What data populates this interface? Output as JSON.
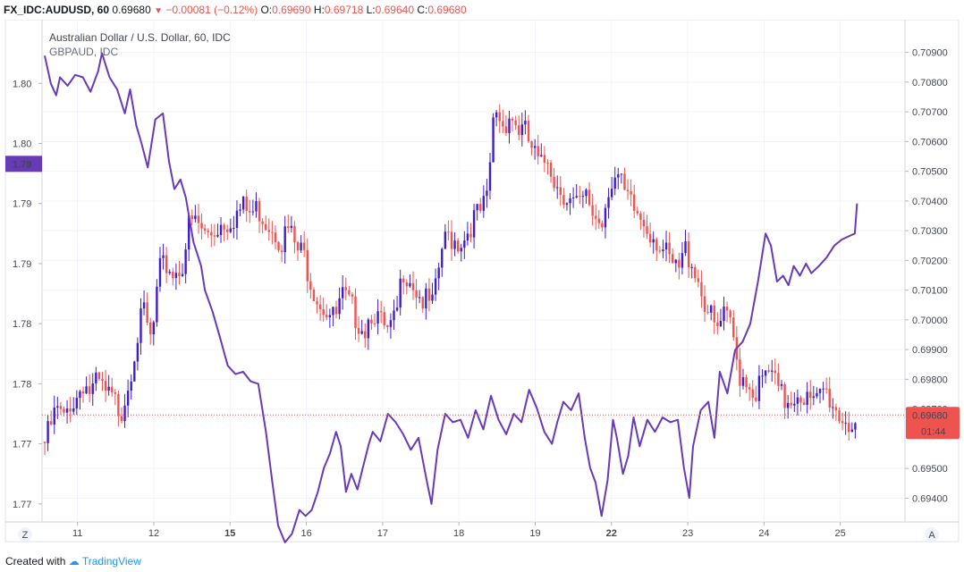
{
  "header": {
    "symbol": "FX_IDC:AUDUSD, 60",
    "last": "0.69680",
    "change": "−0.00081 (−0.12%)",
    "o_label": "O:",
    "o_val": "0.69690",
    "h_label": "H:",
    "h_val": "0.69718",
    "l_label": "L:",
    "l_val": "0.69640",
    "c_label": "C:",
    "c_val": "0.69680"
  },
  "legend": {
    "main_series": "Australian Dollar / U.S. Dollar, 60, IDC",
    "compare_series": "GBPAUD, IDC"
  },
  "footer": {
    "created_with": "Created with",
    "brand": "TradingView",
    "left_scale_button": "Z",
    "right_scale_button": "A"
  },
  "colors": {
    "up_candle": "#3f1dcb",
    "down_candle": "#ef5350",
    "compare_line": "#673ab7",
    "grid": "#f0f3fa",
    "last_price": "#ef5350",
    "left_badge": "#673ab7"
  },
  "chart_data": {
    "type": "line",
    "title": "Australian Dollar / U.S. Dollar, 60, IDC",
    "x_ticks": [
      {
        "label": "11",
        "bold": false
      },
      {
        "label": "12",
        "bold": false
      },
      {
        "label": "15",
        "bold": true
      },
      {
        "label": "16",
        "bold": false
      },
      {
        "label": "17",
        "bold": false
      },
      {
        "label": "18",
        "bold": false
      },
      {
        "label": "19",
        "bold": false
      },
      {
        "label": "22",
        "bold": true
      },
      {
        "label": "23",
        "bold": false
      },
      {
        "label": "24",
        "bold": false
      },
      {
        "label": "25",
        "bold": false
      }
    ],
    "right_axis": {
      "ticks": [
        "0.70900",
        "0.70800",
        "0.70700",
        "0.70600",
        "0.70500",
        "0.70400",
        "0.70300",
        "0.70200",
        "0.70100",
        "0.70000",
        "0.69900",
        "0.69800",
        "0.69700",
        "0.69500",
        "0.69400"
      ],
      "ylim": [
        0.6932,
        0.7101
      ]
    },
    "left_axis": {
      "ticks": [
        "1.80",
        "1.80",
        "1.79",
        "1.79",
        "1.78",
        "1.78",
        "1.77",
        "1.77"
      ],
      "tick_values": [
        1.802,
        1.797,
        1.792,
        1.787,
        1.782,
        1.777,
        1.772,
        1.767
      ],
      "ylim": [
        1.7655,
        1.8073
      ]
    },
    "last_price_label": "0.69680",
    "last_price_value": 0.6968,
    "countdown_label": "01:44",
    "left_badge_label": "1.79",
    "left_badge_value": 1.7953,
    "series": [
      {
        "name": "Australian Dollar / U.S. Dollar, 60, IDC",
        "axis": "right",
        "style": "candles",
        "close_points": [
          [
            0.0,
            0.6961
          ],
          [
            0.06,
            0.6965
          ],
          [
            0.12,
            0.697
          ],
          [
            0.18,
            0.6972
          ],
          [
            0.25,
            0.6968
          ],
          [
            0.33,
            0.6975
          ],
          [
            0.4,
            0.6975
          ],
          [
            0.5,
            0.6982
          ],
          [
            0.6,
            0.6978
          ],
          [
            0.7,
            0.6981
          ],
          [
            0.8,
            0.6977
          ],
          [
            0.9,
            0.6975
          ],
          [
            1.0,
            0.6972
          ],
          [
            1.1,
            0.6982
          ],
          [
            1.2,
            0.6996
          ],
          [
            1.3,
            0.7005
          ],
          [
            1.4,
            0.6994
          ],
          [
            1.5,
            0.7018
          ],
          [
            1.6,
            0.7021
          ],
          [
            1.7,
            0.7018
          ],
          [
            1.8,
            0.7021
          ],
          [
            1.9,
            0.7035
          ],
          [
            2.0,
            0.7035
          ],
          [
            2.1,
            0.7031
          ],
          [
            2.2,
            0.7032
          ],
          [
            2.3,
            0.7035
          ],
          [
            2.4,
            0.7036
          ],
          [
            2.5,
            0.7038
          ],
          [
            2.6,
            0.704
          ],
          [
            2.7,
            0.7038
          ],
          [
            2.8,
            0.704
          ],
          [
            2.9,
            0.7036
          ],
          [
            3.0,
            0.7034
          ],
          [
            3.1,
            0.7029
          ],
          [
            3.2,
            0.7033
          ],
          [
            3.3,
            0.7026
          ],
          [
            3.4,
            0.7024
          ],
          [
            3.5,
            0.7015
          ],
          [
            3.6,
            0.7009
          ],
          [
            3.7,
            0.7006
          ],
          [
            3.8,
            0.7002
          ],
          [
            3.9,
            0.701
          ],
          [
            4.0,
            0.7007
          ],
          [
            4.1,
            0.7003
          ],
          [
            4.2,
            0.7
          ],
          [
            4.3,
            0.7007
          ],
          [
            4.4,
            0.7001
          ],
          [
            4.5,
            0.6997
          ],
          [
            4.6,
            0.7002
          ],
          [
            4.7,
            0.702
          ],
          [
            4.8,
            0.7017
          ],
          [
            4.9,
            0.7011
          ],
          [
            5.0,
            0.7008
          ],
          [
            5.1,
            0.7007
          ],
          [
            5.2,
            0.7026
          ],
          [
            5.3,
            0.7031
          ],
          [
            5.4,
            0.7029
          ],
          [
            5.5,
            0.703
          ],
          [
            5.6,
            0.7036
          ],
          [
            5.7,
            0.7038
          ],
          [
            5.8,
            0.7042
          ],
          [
            5.9,
            0.7075
          ],
          [
            6.0,
            0.7068
          ],
          [
            6.1,
            0.7072
          ],
          [
            6.2,
            0.7067
          ],
          [
            6.3,
            0.7065
          ],
          [
            6.4,
            0.7059
          ],
          [
            6.5,
            0.7053
          ],
          [
            6.6,
            0.7058
          ],
          [
            6.7,
            0.7048
          ],
          [
            6.8,
            0.7046
          ],
          [
            6.9,
            0.7042
          ],
          [
            7.0,
            0.704
          ],
          [
            7.1,
            0.7043
          ],
          [
            7.2,
            0.7038
          ],
          [
            7.3,
            0.7035
          ],
          [
            7.4,
            0.7049
          ],
          [
            7.5,
            0.7051
          ],
          [
            7.6,
            0.7044
          ],
          [
            7.7,
            0.704
          ],
          [
            7.8,
            0.7037
          ],
          [
            7.9,
            0.7034
          ],
          [
            8.0,
            0.7031
          ],
          [
            8.1,
            0.7026
          ],
          [
            8.2,
            0.7021
          ],
          [
            8.3,
            0.7018
          ],
          [
            8.4,
            0.7026
          ],
          [
            8.5,
            0.7022
          ],
          [
            8.6,
            0.7013
          ],
          [
            8.7,
            0.7005
          ],
          [
            8.8,
            0.6998
          ],
          [
            8.9,
            0.7003
          ],
          [
            9.0,
            0.7
          ],
          [
            9.1,
            0.6985
          ],
          [
            9.2,
            0.6983
          ],
          [
            9.3,
            0.6978
          ],
          [
            9.4,
            0.6981
          ],
          [
            9.5,
            0.6985
          ],
          [
            9.6,
            0.6979
          ],
          [
            9.7,
            0.6975
          ],
          [
            9.8,
            0.6977
          ],
          [
            9.9,
            0.6979
          ],
          [
            10.0,
            0.6975
          ],
          [
            10.1,
            0.6973
          ],
          [
            10.2,
            0.6979
          ],
          [
            10.3,
            0.6976
          ],
          [
            10.4,
            0.6971
          ],
          [
            10.5,
            0.6969
          ],
          [
            10.6,
            0.6967
          ],
          [
            10.65,
            0.6968
          ]
        ]
      },
      {
        "name": "GBPAUD, IDC",
        "axis": "left",
        "style": "line",
        "points": [
          [
            0.0,
            1.8043
          ],
          [
            0.08,
            1.802
          ],
          [
            0.15,
            1.801
          ],
          [
            0.2,
            1.8025
          ],
          [
            0.3,
            1.8018
          ],
          [
            0.4,
            1.8027
          ],
          [
            0.5,
            1.8025
          ],
          [
            0.6,
            1.8013
          ],
          [
            0.7,
            1.803
          ],
          [
            0.75,
            1.8045
          ],
          [
            0.85,
            1.8025
          ],
          [
            0.95,
            1.8015
          ],
          [
            1.05,
            1.7995
          ],
          [
            1.12,
            1.8015
          ],
          [
            1.2,
            1.7985
          ],
          [
            1.27,
            1.797
          ],
          [
            1.35,
            1.795
          ],
          [
            1.45,
            1.799
          ],
          [
            1.55,
            1.7995
          ],
          [
            1.63,
            1.7955
          ],
          [
            1.7,
            1.7932
          ],
          [
            1.78,
            1.794
          ],
          [
            1.85,
            1.7925
          ],
          [
            1.95,
            1.7888
          ],
          [
            2.05,
            1.7868
          ],
          [
            2.1,
            1.7848
          ],
          [
            2.2,
            1.783
          ],
          [
            2.3,
            1.7808
          ],
          [
            2.4,
            1.7785
          ],
          [
            2.5,
            1.7778
          ],
          [
            2.6,
            1.778
          ],
          [
            2.7,
            1.7772
          ],
          [
            2.8,
            1.777
          ],
          [
            2.9,
            1.773
          ],
          [
            2.98,
            1.769
          ],
          [
            3.06,
            1.7652
          ],
          [
            3.15,
            1.7638
          ],
          [
            3.24,
            1.7645
          ],
          [
            3.34,
            1.7665
          ],
          [
            3.42,
            1.766
          ],
          [
            3.5,
            1.7665
          ],
          [
            3.58,
            1.768
          ],
          [
            3.66,
            1.77
          ],
          [
            3.74,
            1.7712
          ],
          [
            3.82,
            1.773
          ],
          [
            3.88,
            1.7718
          ],
          [
            3.95,
            1.768
          ],
          [
            4.02,
            1.7695
          ],
          [
            4.1,
            1.7682
          ],
          [
            4.15,
            1.7695
          ],
          [
            4.25,
            1.772
          ],
          [
            4.3,
            1.773
          ],
          [
            4.4,
            1.7722
          ],
          [
            4.5,
            1.7745
          ],
          [
            4.6,
            1.7738
          ],
          [
            4.7,
            1.7728
          ],
          [
            4.8,
            1.7715
          ],
          [
            4.9,
            1.7725
          ],
          [
            5.0,
            1.7692
          ],
          [
            5.07,
            1.767
          ],
          [
            5.15,
            1.7715
          ],
          [
            5.25,
            1.7745
          ],
          [
            5.35,
            1.7738
          ],
          [
            5.45,
            1.774
          ],
          [
            5.55,
            1.7725
          ],
          [
            5.65,
            1.7748
          ],
          [
            5.75,
            1.7732
          ],
          [
            5.85,
            1.776
          ],
          [
            5.95,
            1.774
          ],
          [
            6.05,
            1.7728
          ],
          [
            6.15,
            1.7745
          ],
          [
            6.25,
            1.7738
          ],
          [
            6.35,
            1.7765
          ],
          [
            6.45,
            1.775
          ],
          [
            6.55,
            1.773
          ],
          [
            6.65,
            1.772
          ],
          [
            6.72,
            1.7738
          ],
          [
            6.8,
            1.7755
          ],
          [
            6.9,
            1.7748
          ],
          [
            7.0,
            1.7762
          ],
          [
            7.08,
            1.7725
          ],
          [
            7.15,
            1.77
          ],
          [
            7.22,
            1.7688
          ],
          [
            7.3,
            1.766
          ],
          [
            7.38,
            1.769
          ],
          [
            7.45,
            1.774
          ],
          [
            7.5,
            1.7725
          ],
          [
            7.58,
            1.7695
          ],
          [
            7.65,
            1.771
          ],
          [
            7.72,
            1.7742
          ],
          [
            7.8,
            1.7718
          ],
          [
            7.9,
            1.774
          ],
          [
            8.0,
            1.773
          ],
          [
            8.1,
            1.7742
          ],
          [
            8.2,
            1.7738
          ],
          [
            8.3,
            1.774
          ],
          [
            8.38,
            1.77
          ],
          [
            8.45,
            1.7675
          ],
          [
            8.5,
            1.7718
          ],
          [
            8.6,
            1.7748
          ],
          [
            8.7,
            1.7755
          ],
          [
            8.78,
            1.7725
          ],
          [
            8.85,
            1.778
          ],
          [
            8.95,
            1.7762
          ],
          [
            9.05,
            1.7798
          ],
          [
            9.15,
            1.7805
          ],
          [
            9.25,
            1.782
          ],
          [
            9.35,
            1.7855
          ],
          [
            9.45,
            1.7895
          ],
          [
            9.52,
            1.7885
          ],
          [
            9.6,
            1.7855
          ],
          [
            9.68,
            1.786
          ],
          [
            9.75,
            1.7852
          ],
          [
            9.82,
            1.7868
          ],
          [
            9.9,
            1.786
          ],
          [
            9.98,
            1.787
          ],
          [
            10.05,
            1.7862
          ],
          [
            10.15,
            1.7868
          ],
          [
            10.25,
            1.7875
          ],
          [
            10.35,
            1.7885
          ],
          [
            10.45,
            1.789
          ],
          [
            10.55,
            1.7893
          ],
          [
            10.62,
            1.7895
          ],
          [
            10.65,
            1.792
          ]
        ]
      }
    ]
  }
}
